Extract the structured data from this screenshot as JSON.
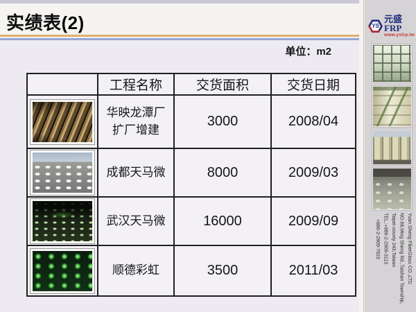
{
  "slide": {
    "title": "实绩表(2)",
    "unit_label": "单位：m2"
  },
  "table": {
    "headers": [
      "",
      "工程名称",
      "交货面积",
      "交货日期"
    ],
    "rows": [
      {
        "name": "华映龙潭厂\n扩厂增建",
        "area": "3000",
        "date": "2008/04",
        "photo": "ceiling-framework-photo"
      },
      {
        "name": "成都天马微",
        "area": "8000",
        "date": "2009/03",
        "photo": "construction-site-photo"
      },
      {
        "name": "武汉天马微",
        "area": "16000",
        "date": "2009/09",
        "photo": "dark-green-floor-photo"
      },
      {
        "name": "顺德彩虹",
        "area": "3500",
        "date": "2011/03",
        "photo": "green-domes-photo"
      }
    ]
  },
  "sidebar": {
    "logo": {
      "monogram": "YS",
      "brand": "元盛FRP",
      "url": "www.ysfrp.tw"
    },
    "photos": [
      "coffered-ceiling-photo",
      "frp-tank-photo",
      "storage-tanks-photo",
      "warehouse-floor-photo"
    ],
    "contact_lines": [
      "Yuan Sheng FiberGlass CO.,LTD",
      "NO.68,Ming Sheng Rd.,Taishan Township,",
      "Taipei county 243,Taiwan",
      "TEL.:+886-2-2909-3113",
      "+886-2-2909-7923"
    ]
  },
  "colors": {
    "title_rule_orange": "#dfae72",
    "title_rule_blue": "#92a8d5",
    "logo_navy": "#1d2d7c",
    "logo_red": "#a82734",
    "url_red": "#c23030",
    "table_border": "#1f1f1f",
    "main_background": "#edebf1",
    "title_background": "#f6f4f1",
    "sidebar_background": "#d6d3d6"
  }
}
